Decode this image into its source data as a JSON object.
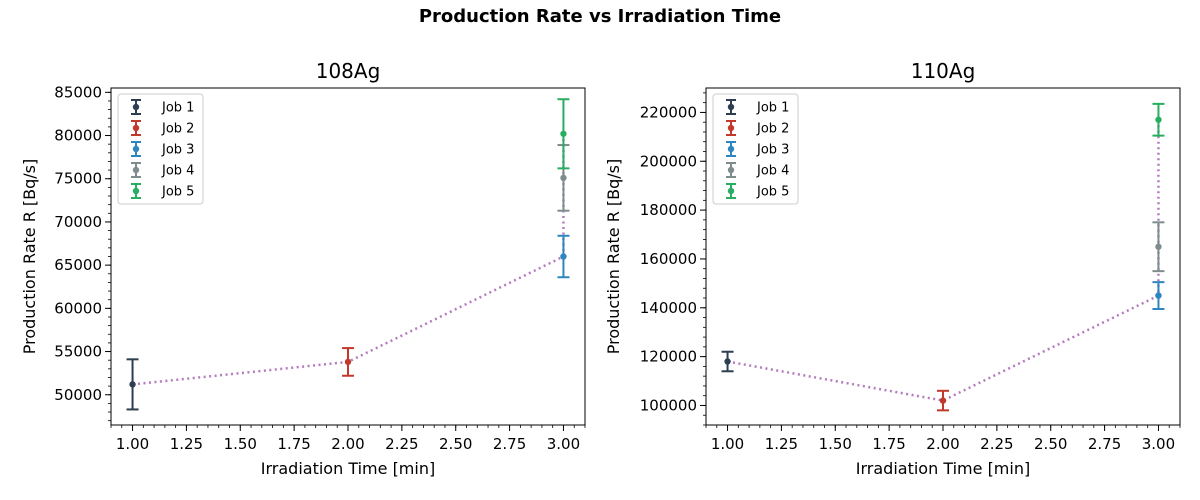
{
  "figure": {
    "title": "Production Rate vs Irradiation Time"
  },
  "chart_data": [
    {
      "type": "scatter",
      "title": "108Ag",
      "xlabel": "Irradiation Time [min]",
      "ylabel": "Production Rate R [Bq/s]",
      "xlim": [
        0.9,
        3.1
      ],
      "ylim": [
        46500,
        85500
      ],
      "xticks": [
        1.0,
        1.25,
        1.5,
        1.75,
        2.0,
        2.25,
        2.5,
        2.75,
        3.0
      ],
      "xtick_labels": [
        "1.00",
        "1.25",
        "1.50",
        "1.75",
        "2.00",
        "2.25",
        "2.50",
        "2.75",
        "3.00"
      ],
      "yticks": [
        50000,
        55000,
        60000,
        65000,
        70000,
        75000,
        80000,
        85000
      ],
      "ytick_labels": [
        "50000",
        "55000",
        "60000",
        "65000",
        "70000",
        "75000",
        "80000",
        "85000"
      ],
      "grid": false,
      "legend_position": "top-left",
      "series": [
        {
          "name": "Job 1",
          "color": "#2c3e50",
          "x": [
            1.0
          ],
          "y": [
            51200
          ],
          "yerr": [
            2900
          ]
        },
        {
          "name": "Job 2",
          "color": "#c0392b",
          "x": [
            2.0
          ],
          "y": [
            53800
          ],
          "yerr": [
            1600
          ]
        },
        {
          "name": "Job 3",
          "color": "#2e86c1",
          "x": [
            3.0
          ],
          "y": [
            66000
          ],
          "yerr": [
            2400
          ]
        },
        {
          "name": "Job 4",
          "color": "#7f8c8d",
          "x": [
            3.0
          ],
          "y": [
            75100
          ],
          "yerr": [
            3800
          ]
        },
        {
          "name": "Job 5",
          "color": "#27ae60",
          "x": [
            3.0
          ],
          "y": [
            80200
          ],
          "yerr": [
            4000
          ]
        }
      ],
      "trend": {
        "color": "#b57ac0",
        "style": "dotted",
        "x": [
          1.0,
          2.0,
          3.0,
          3.0,
          3.0
        ],
        "y": [
          51200,
          53800,
          66000,
          75100,
          80200
        ]
      }
    },
    {
      "type": "scatter",
      "title": "110Ag",
      "xlabel": "Irradiation Time [min]",
      "ylabel": "Production Rate R [Bq/s]",
      "xlim": [
        0.9,
        3.1
      ],
      "ylim": [
        92000,
        230000
      ],
      "xticks": [
        1.0,
        1.25,
        1.5,
        1.75,
        2.0,
        2.25,
        2.5,
        2.75,
        3.0
      ],
      "xtick_labels": [
        "1.00",
        "1.25",
        "1.50",
        "1.75",
        "2.00",
        "2.25",
        "2.50",
        "2.75",
        "3.00"
      ],
      "yticks": [
        100000,
        120000,
        140000,
        160000,
        180000,
        200000,
        220000
      ],
      "ytick_labels": [
        "100000",
        "120000",
        "140000",
        "160000",
        "180000",
        "200000",
        "220000"
      ],
      "grid": false,
      "legend_position": "top-left",
      "series": [
        {
          "name": "Job 1",
          "color": "#2c3e50",
          "x": [
            1.0
          ],
          "y": [
            118000
          ],
          "yerr": [
            4000
          ]
        },
        {
          "name": "Job 2",
          "color": "#c0392b",
          "x": [
            2.0
          ],
          "y": [
            102000
          ],
          "yerr": [
            4000
          ]
        },
        {
          "name": "Job 3",
          "color": "#2e86c1",
          "x": [
            3.0
          ],
          "y": [
            145000
          ],
          "yerr": [
            5500
          ]
        },
        {
          "name": "Job 4",
          "color": "#7f8c8d",
          "x": [
            3.0
          ],
          "y": [
            165000
          ],
          "yerr": [
            10000
          ]
        },
        {
          "name": "Job 5",
          "color": "#27ae60",
          "x": [
            3.0
          ],
          "y": [
            217000
          ],
          "yerr": [
            6500
          ]
        }
      ],
      "trend": {
        "color": "#b57ac0",
        "style": "dotted",
        "x": [
          1.0,
          2.0,
          3.0,
          3.0,
          3.0
        ],
        "y": [
          118000,
          102000,
          145000,
          165000,
          217000
        ]
      }
    }
  ]
}
